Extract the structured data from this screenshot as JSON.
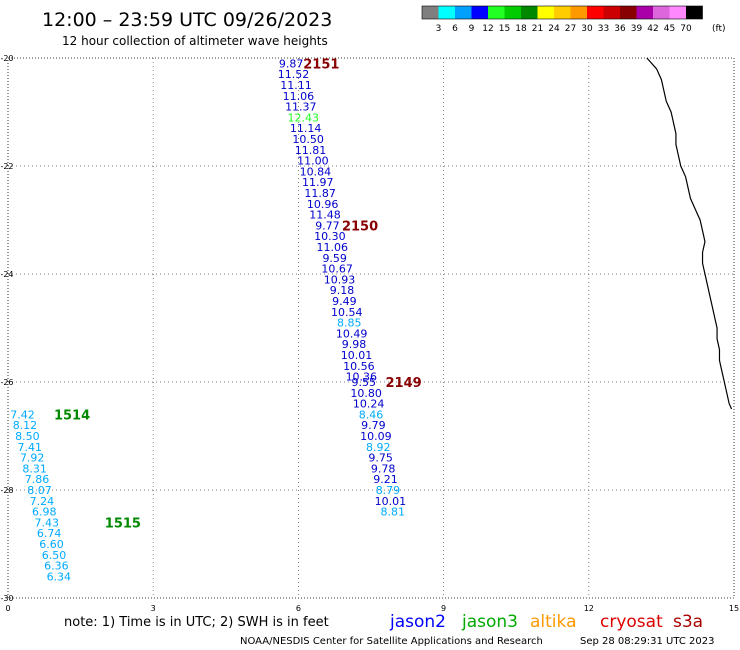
{
  "header": {
    "title": "12:00 – 23:59 UTC 09/26/2023",
    "subtitle": "12 hour collection of altimeter wave heights"
  },
  "colorbar": {
    "colors": [
      "#7f7f7f",
      "#00ffff",
      "#00a0ff",
      "#0000ff",
      "#22ff22",
      "#00cc00",
      "#008800",
      "#ffff00",
      "#ffcc00",
      "#ff9900",
      "#ff0000",
      "#cc0000",
      "#880000",
      "#aa00aa",
      "#dd66dd",
      "#ff88ff",
      "#000000"
    ],
    "labels": [
      "3",
      "6",
      "9",
      "12",
      "15",
      "18",
      "21",
      "24",
      "27",
      "30",
      "33",
      "36",
      "39",
      "42",
      "45",
      "70"
    ],
    "unit": "(ft)"
  },
  "footer": {
    "note": "note:  1) Time is in UTC; 2) SWH is in feet",
    "credit": "NOAA/NESDIS Center for Satellite Applications and Research",
    "timestamp": "Sep 28 08:29:31 UTC 2023"
  },
  "legend": [
    {
      "label": "jason2",
      "color": "#0000ff"
    },
    {
      "label": "jason3",
      "color": "#00aa00"
    },
    {
      "label": "altika",
      "color": "#ff9900"
    },
    {
      "label": "cryosat",
      "color": "#dd0000"
    },
    {
      "label": "s3a",
      "color": "#aa0000"
    }
  ],
  "chart_data": {
    "type": "scatter",
    "xlim": [
      0,
      15
    ],
    "ylim": [
      -30,
      -20
    ],
    "x_ticks": [
      "0",
      "3",
      "6",
      "9",
      "12",
      "15"
    ],
    "y_ticks": [
      "-20",
      "-22",
      "-24",
      "-26",
      "-28",
      "-30"
    ],
    "grid": true,
    "coastline": [
      [
        13.2,
        -20.0
      ],
      [
        13.4,
        -20.2
      ],
      [
        13.5,
        -20.4
      ],
      [
        13.55,
        -20.6
      ],
      [
        13.6,
        -20.8
      ],
      [
        13.7,
        -21.0
      ],
      [
        13.75,
        -21.2
      ],
      [
        13.8,
        -21.4
      ],
      [
        13.8,
        -21.6
      ],
      [
        13.85,
        -21.8
      ],
      [
        13.9,
        -22.0
      ],
      [
        14.0,
        -22.2
      ],
      [
        14.05,
        -22.4
      ],
      [
        14.1,
        -22.6
      ],
      [
        14.2,
        -22.8
      ],
      [
        14.3,
        -23.0
      ],
      [
        14.35,
        -23.2
      ],
      [
        14.4,
        -23.4
      ],
      [
        14.35,
        -23.6
      ],
      [
        14.35,
        -23.8
      ],
      [
        14.4,
        -24.0
      ],
      [
        14.45,
        -24.2
      ],
      [
        14.5,
        -24.4
      ],
      [
        14.55,
        -24.6
      ],
      [
        14.6,
        -24.8
      ],
      [
        14.65,
        -25.0
      ],
      [
        14.65,
        -25.2
      ],
      [
        14.7,
        -25.4
      ],
      [
        14.7,
        -25.6
      ],
      [
        14.75,
        -25.8
      ],
      [
        14.8,
        -26.0
      ],
      [
        14.85,
        -26.2
      ],
      [
        14.9,
        -26.4
      ],
      [
        14.95,
        -26.5
      ]
    ],
    "series": [
      {
        "name": "2151",
        "color": "#880000",
        "label_pos": [
          6.1,
          -20.1
        ],
        "points": [
          {
            "x": 5.85,
            "y": -20.1,
            "v": "9.87",
            "c": "#0000cc"
          },
          {
            "x": 5.9,
            "y": -20.3,
            "v": "11.52",
            "c": "#0000cc"
          },
          {
            "x": 5.95,
            "y": -20.5,
            "v": "11.11",
            "c": "#0000cc"
          },
          {
            "x": 6.0,
            "y": -20.7,
            "v": "11.06",
            "c": "#0000cc"
          },
          {
            "x": 6.05,
            "y": -20.9,
            "v": "11.37",
            "c": "#0000cc"
          },
          {
            "x": 6.1,
            "y": -21.1,
            "v": "12.43",
            "c": "#22ff22"
          },
          {
            "x": 6.15,
            "y": -21.3,
            "v": "11.14",
            "c": "#0000cc"
          },
          {
            "x": 6.2,
            "y": -21.5,
            "v": "10.50",
            "c": "#0000cc"
          },
          {
            "x": 6.25,
            "y": -21.7,
            "v": "11.81",
            "c": "#0000cc"
          },
          {
            "x": 6.3,
            "y": -21.9,
            "v": "11.00",
            "c": "#0000cc"
          },
          {
            "x": 6.35,
            "y": -22.1,
            "v": "10.84",
            "c": "#0000cc"
          },
          {
            "x": 6.4,
            "y": -22.3,
            "v": "11.97",
            "c": "#0000cc"
          },
          {
            "x": 6.45,
            "y": -22.5,
            "v": "11.87",
            "c": "#0000cc"
          },
          {
            "x": 6.5,
            "y": -22.7,
            "v": "10.96",
            "c": "#0000cc"
          },
          {
            "x": 6.55,
            "y": -22.9,
            "v": "11.48",
            "c": "#0000cc"
          }
        ]
      },
      {
        "name": "2150",
        "color": "#880000",
        "label_pos": [
          6.9,
          -23.1
        ],
        "points": [
          {
            "x": 6.6,
            "y": -23.1,
            "v": "9.77",
            "c": "#0000cc"
          },
          {
            "x": 6.65,
            "y": -23.3,
            "v": "10.30",
            "c": "#0000cc"
          },
          {
            "x": 6.7,
            "y": -23.5,
            "v": "11.06",
            "c": "#0000cc"
          },
          {
            "x": 6.75,
            "y": -23.7,
            "v": "9.59",
            "c": "#0000cc"
          },
          {
            "x": 6.8,
            "y": -23.9,
            "v": "10.67",
            "c": "#0000cc"
          },
          {
            "x": 6.85,
            "y": -24.1,
            "v": "10.93",
            "c": "#0000cc"
          },
          {
            "x": 6.9,
            "y": -24.3,
            "v": "9.18",
            "c": "#0000cc"
          },
          {
            "x": 6.95,
            "y": -24.5,
            "v": "9.49",
            "c": "#0000cc"
          },
          {
            "x": 7.0,
            "y": -24.7,
            "v": "10.54",
            "c": "#0000cc"
          },
          {
            "x": 7.05,
            "y": -24.9,
            "v": "8.85",
            "c": "#00aaff"
          },
          {
            "x": 7.1,
            "y": -25.1,
            "v": "10.49",
            "c": "#0000cc"
          },
          {
            "x": 7.15,
            "y": -25.3,
            "v": "9.98",
            "c": "#0000cc"
          },
          {
            "x": 7.2,
            "y": -25.5,
            "v": "10.01",
            "c": "#0000cc"
          },
          {
            "x": 7.25,
            "y": -25.7,
            "v": "10.56",
            "c": "#0000cc"
          },
          {
            "x": 7.3,
            "y": -25.9,
            "v": "10.36",
            "c": "#0000cc"
          }
        ]
      },
      {
        "name": "2149",
        "color": "#880000",
        "label_pos": [
          7.8,
          -26.0
        ],
        "points": [
          {
            "x": 7.35,
            "y": -26.0,
            "v": "9.55",
            "c": "#0000cc"
          },
          {
            "x": 7.4,
            "y": -26.2,
            "v": "10.80",
            "c": "#0000cc"
          },
          {
            "x": 7.45,
            "y": -26.4,
            "v": "10.24",
            "c": "#0000cc"
          },
          {
            "x": 7.5,
            "y": -26.6,
            "v": "8.46",
            "c": "#00aaff"
          },
          {
            "x": 7.55,
            "y": -26.8,
            "v": "9.79",
            "c": "#0000cc"
          },
          {
            "x": 7.6,
            "y": -27.0,
            "v": "10.09",
            "c": "#0000cc"
          },
          {
            "x": 7.65,
            "y": -27.2,
            "v": "8.92",
            "c": "#00aaff"
          },
          {
            "x": 7.7,
            "y": -27.4,
            "v": "9.75",
            "c": "#0000cc"
          },
          {
            "x": 7.75,
            "y": -27.6,
            "v": "9.78",
            "c": "#0000cc"
          },
          {
            "x": 7.8,
            "y": -27.8,
            "v": "9.21",
            "c": "#0000cc"
          },
          {
            "x": 7.85,
            "y": -28.0,
            "v": "8.79",
            "c": "#00aaff"
          },
          {
            "x": 7.9,
            "y": -28.2,
            "v": "10.01",
            "c": "#0000cc"
          },
          {
            "x": 7.95,
            "y": -28.4,
            "v": "8.81",
            "c": "#00aaff"
          }
        ]
      },
      {
        "name": "1514",
        "color": "#008800",
        "label_pos": [
          0.95,
          -26.6
        ],
        "points": [
          {
            "x": 0.3,
            "y": -26.6,
            "v": "7.42",
            "c": "#00aaff"
          },
          {
            "x": 0.35,
            "y": -26.8,
            "v": "8.12",
            "c": "#00aaff"
          },
          {
            "x": 0.4,
            "y": -27.0,
            "v": "8.50",
            "c": "#00aaff"
          },
          {
            "x": 0.45,
            "y": -27.2,
            "v": "7.41",
            "c": "#00aaff"
          },
          {
            "x": 0.5,
            "y": -27.4,
            "v": "7.92",
            "c": "#00aaff"
          },
          {
            "x": 0.55,
            "y": -27.6,
            "v": "8.31",
            "c": "#00aaff"
          },
          {
            "x": 0.6,
            "y": -27.8,
            "v": "7.86",
            "c": "#00aaff"
          },
          {
            "x": 0.65,
            "y": -28.0,
            "v": "8.07",
            "c": "#00aaff"
          },
          {
            "x": 0.7,
            "y": -28.2,
            "v": "7.24",
            "c": "#00aaff"
          },
          {
            "x": 0.75,
            "y": -28.4,
            "v": "6.98",
            "c": "#00aaff"
          }
        ]
      },
      {
        "name": "1515",
        "color": "#008800",
        "label_pos": [
          2.0,
          -28.6
        ],
        "points": [
          {
            "x": 0.8,
            "y": -28.6,
            "v": "7.43",
            "c": "#00aaff"
          },
          {
            "x": 0.85,
            "y": -28.8,
            "v": "6.74",
            "c": "#00aaff"
          },
          {
            "x": 0.9,
            "y": -29.0,
            "v": "6.60",
            "c": "#00aaff"
          },
          {
            "x": 0.95,
            "y": -29.2,
            "v": "6.50",
            "c": "#00aaff"
          },
          {
            "x": 1.0,
            "y": -29.4,
            "v": "6.36",
            "c": "#00aaff"
          },
          {
            "x": 1.05,
            "y": -29.6,
            "v": "6.34",
            "c": "#00aaff"
          }
        ]
      }
    ]
  }
}
